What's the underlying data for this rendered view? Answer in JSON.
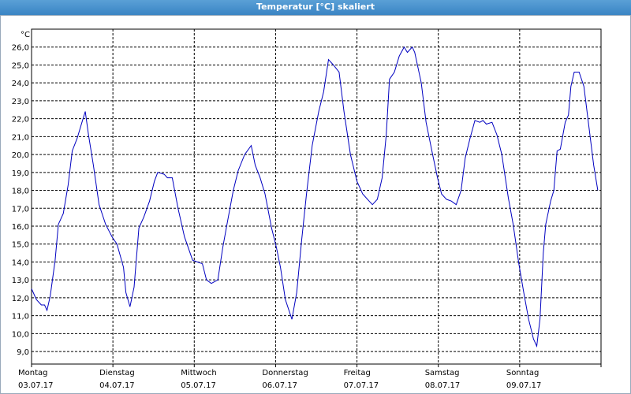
{
  "window_title": "Temperatur [°C] skaliert",
  "chart_data": {
    "type": "line",
    "y_unit": "°C",
    "xlim": [
      0,
      7
    ],
    "xticks": [
      0,
      1,
      2,
      3,
      4,
      5,
      6,
      7
    ],
    "day_labels": [
      {
        "name": "Montag",
        "date": "03.07.17"
      },
      {
        "name": "Dienstag",
        "date": "04.07.17"
      },
      {
        "name": "Mittwoch",
        "date": "05.07.17"
      },
      {
        "name": "Donnerstag",
        "date": "06.07.17"
      },
      {
        "name": "Freitag",
        "date": "07.07.17"
      },
      {
        "name": "Samstag",
        "date": "08.07.17"
      },
      {
        "name": "Sonntag",
        "date": "09.07.17"
      }
    ],
    "ylim": [
      8.3,
      27.0
    ],
    "yticks": [
      {
        "value": 9,
        "label": "9,0"
      },
      {
        "value": 10,
        "label": "10,0"
      },
      {
        "value": 11,
        "label": "11,0"
      },
      {
        "value": 12,
        "label": "12,0"
      },
      {
        "value": 13,
        "label": "13,0"
      },
      {
        "value": 14,
        "label": "14,0"
      },
      {
        "value": 15,
        "label": "15,0"
      },
      {
        "value": 16,
        "label": "16,0"
      },
      {
        "value": 17,
        "label": "17,0"
      },
      {
        "value": 18,
        "label": "18,0"
      },
      {
        "value": 19,
        "label": "19,0"
      },
      {
        "value": 20,
        "label": "20,0"
      },
      {
        "value": 21,
        "label": "21,0"
      },
      {
        "value": 22,
        "label": "22,0"
      },
      {
        "value": 23,
        "label": "23,0"
      },
      {
        "value": 24,
        "label": "24,0"
      },
      {
        "value": 25,
        "label": "25,0"
      },
      {
        "value": 26,
        "label": "26,0"
      }
    ],
    "grid": true,
    "color": "#0000c0",
    "x": [
      0,
      0.06,
      0.12,
      0.16,
      0.19,
      0.23,
      0.29,
      0.33,
      0.39,
      0.45,
      0.5,
      0.56,
      0.62,
      0.66,
      0.7,
      0.76,
      0.83,
      0.91,
      0.99,
      1.05,
      1.13,
      1.16,
      1.21,
      1.26,
      1.32,
      1.38,
      1.45,
      1.51,
      1.55,
      1.63,
      1.67,
      1.73,
      1.8,
      1.88,
      1.98,
      2.04,
      2.1,
      2.15,
      2.21,
      2.29,
      2.35,
      2.41,
      2.48,
      2.54,
      2.62,
      2.7,
      2.75,
      2.81,
      2.87,
      2.95,
      3.01,
      3.06,
      3.12,
      3.2,
      3.26,
      3.32,
      3.38,
      3.45,
      3.53,
      3.59,
      3.65,
      3.71,
      3.78,
      3.84,
      3.92,
      4.0,
      4.07,
      4.15,
      4.19,
      4.25,
      4.31,
      4.36,
      4.4,
      4.46,
      4.52,
      4.58,
      4.62,
      4.68,
      4.71,
      4.79,
      4.85,
      4.93,
      4.99,
      5.04,
      5.1,
      5.16,
      5.22,
      5.28,
      5.33,
      5.39,
      5.45,
      5.51,
      5.55,
      5.59,
      5.66,
      5.72,
      5.78,
      5.86,
      5.92,
      5.99,
      6.05,
      6.11,
      6.17,
      6.21,
      6.25,
      6.29,
      6.32,
      6.38,
      6.42,
      6.46,
      6.5,
      6.56,
      6.6,
      6.63,
      6.67,
      6.73,
      6.79,
      6.85,
      6.91,
      6.96
    ],
    "values": [
      12.5,
      11.9,
      11.6,
      11.6,
      11.3,
      12.1,
      14.1,
      16.1,
      16.7,
      18.3,
      20.2,
      20.9,
      21.8,
      22.4,
      21.1,
      19.4,
      17.2,
      16.1,
      15.4,
      15.0,
      13.7,
      12.3,
      11.5,
      12.6,
      15.9,
      16.5,
      17.4,
      18.5,
      19.0,
      18.9,
      18.7,
      18.7,
      17.0,
      15.4,
      14.1,
      14.0,
      13.9,
      13.0,
      12.8,
      13.0,
      14.8,
      16.3,
      18.0,
      19.1,
      20.0,
      20.5,
      19.4,
      18.7,
      17.8,
      15.9,
      14.8,
      13.7,
      11.9,
      10.8,
      12.3,
      15.2,
      17.8,
      20.5,
      22.4,
      23.5,
      25.3,
      25.0,
      24.6,
      22.4,
      20.0,
      18.5,
      17.8,
      17.4,
      17.2,
      17.5,
      18.7,
      21.1,
      24.2,
      24.6,
      25.5,
      26.0,
      25.7,
      26.0,
      25.7,
      24.0,
      21.8,
      20.0,
      18.7,
      17.8,
      17.5,
      17.4,
      17.2,
      18.0,
      19.8,
      20.9,
      21.9,
      21.8,
      21.9,
      21.7,
      21.8,
      21.1,
      20.0,
      17.6,
      16.1,
      13.9,
      12.3,
      10.8,
      9.7,
      9.3,
      10.8,
      14.5,
      16.1,
      17.4,
      18.0,
      20.2,
      20.3,
      21.8,
      22.2,
      23.8,
      24.6,
      24.6,
      23.8,
      21.6,
      19.4,
      18.0
    ]
  }
}
